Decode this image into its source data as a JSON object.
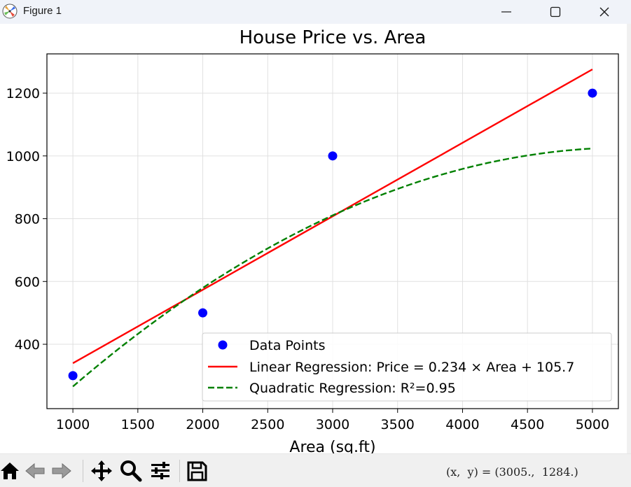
{
  "window": {
    "title": "Figure 1",
    "icons": [
      "matplotlib-icon",
      "minimize-icon",
      "maximize-icon",
      "close-icon"
    ]
  },
  "toolbar": {
    "tools": [
      "home-icon",
      "back-icon",
      "forward-icon",
      "pan-icon",
      "zoom-icon",
      "configure-subplots-icon",
      "save-icon"
    ],
    "coordinates": "(x,  y) = (3005.,  1284.)"
  },
  "colors": {
    "points": "#0000ff",
    "linear": "#ff0000",
    "quadratic": "#008000",
    "grid": "#e0e0e0",
    "toolbar_bg": "#f0f0f0"
  },
  "chart_data": {
    "type": "scatter",
    "title": "House Price vs. Area",
    "xlabel": "Area (sq.ft)",
    "ylabel": "",
    "xlim": [
      800,
      5200
    ],
    "ylim": [
      195,
      1325
    ],
    "xticks": [
      1000,
      1500,
      2000,
      2500,
      3000,
      3500,
      4000,
      4500,
      5000
    ],
    "yticks": [
      400,
      600,
      800,
      1000,
      1200
    ],
    "grid": true,
    "legend_position": "lower right",
    "series": [
      {
        "name": "Data Points",
        "kind": "scatter",
        "x": [
          1000,
          2000,
          3000,
          5000
        ],
        "y": [
          300,
          500,
          1000,
          1200
        ]
      },
      {
        "name": "Linear Regression: Price = 0.234 × Area + 105.7",
        "kind": "line",
        "style": "solid",
        "x": [
          1000,
          5000
        ],
        "y": [
          339.7,
          1275.7
        ]
      },
      {
        "name": "Quadratic Regression: R²=0.95",
        "kind": "line",
        "style": "dashed",
        "coefficients": [
          -4.15e-05,
          0.4385,
          -131.5
        ],
        "x_range": [
          1000,
          5000
        ]
      }
    ]
  }
}
